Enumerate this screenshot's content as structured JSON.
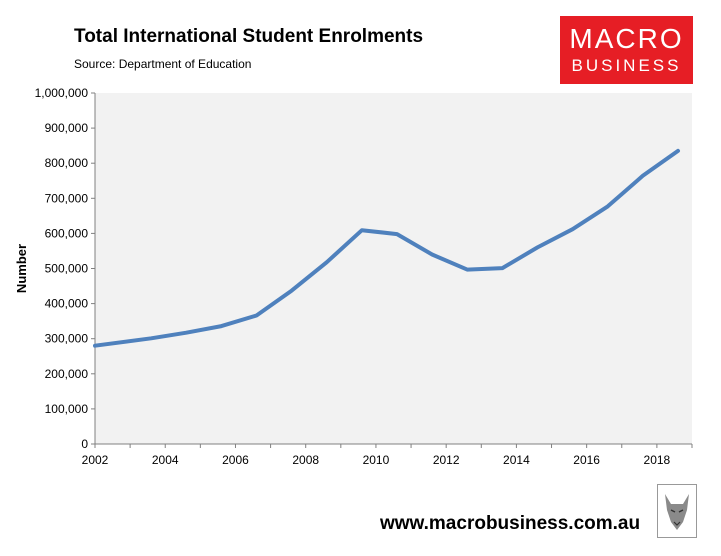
{
  "header": {
    "title": "Total International Student Enrolments",
    "subtitle": "Source: Department of Education"
  },
  "logo": {
    "line1": "MACRO",
    "line2": "BUSINESS",
    "color": "#e61e25"
  },
  "footer": {
    "url": "www.macrobusiness.com.au"
  },
  "colors": {
    "line": "#4f81bd",
    "plot_bg": "#f2f2f2",
    "axis": "#808080"
  },
  "chart_data": {
    "type": "line",
    "title": "Total International Student Enrolments",
    "subtitle": "Source: Department of Education",
    "xlabel": "",
    "ylabel": "Number",
    "xlim": [
      2002,
      2019
    ],
    "ylim": [
      0,
      1000000
    ],
    "x_ticks": [
      2002,
      2004,
      2006,
      2008,
      2010,
      2012,
      2014,
      2016,
      2018
    ],
    "y_ticks": [
      0,
      100000,
      200000,
      300000,
      400000,
      500000,
      600000,
      700000,
      800000,
      900000,
      1000000
    ],
    "y_tick_labels": [
      "0",
      "100,000",
      "200,000",
      "300,000",
      "400,000",
      "500,000",
      "600,000",
      "700,000",
      "800,000",
      "900,000",
      "1,000,000"
    ],
    "grid": false,
    "legend": "none",
    "series": [
      {
        "x": [
          2002,
          2003,
          2004,
          2005,
          2006,
          2007,
          2008,
          2009,
          2010,
          2011,
          2012,
          2013,
          2014,
          2015,
          2016,
          2017,
          2018
        ],
        "values": [
          280000,
          301000,
          317000,
          336000,
          366000,
          437000,
          518000,
          609000,
          598000,
          540000,
          497000,
          501000,
          560000,
          612000,
          677000,
          764000,
          835000
        ]
      }
    ]
  }
}
